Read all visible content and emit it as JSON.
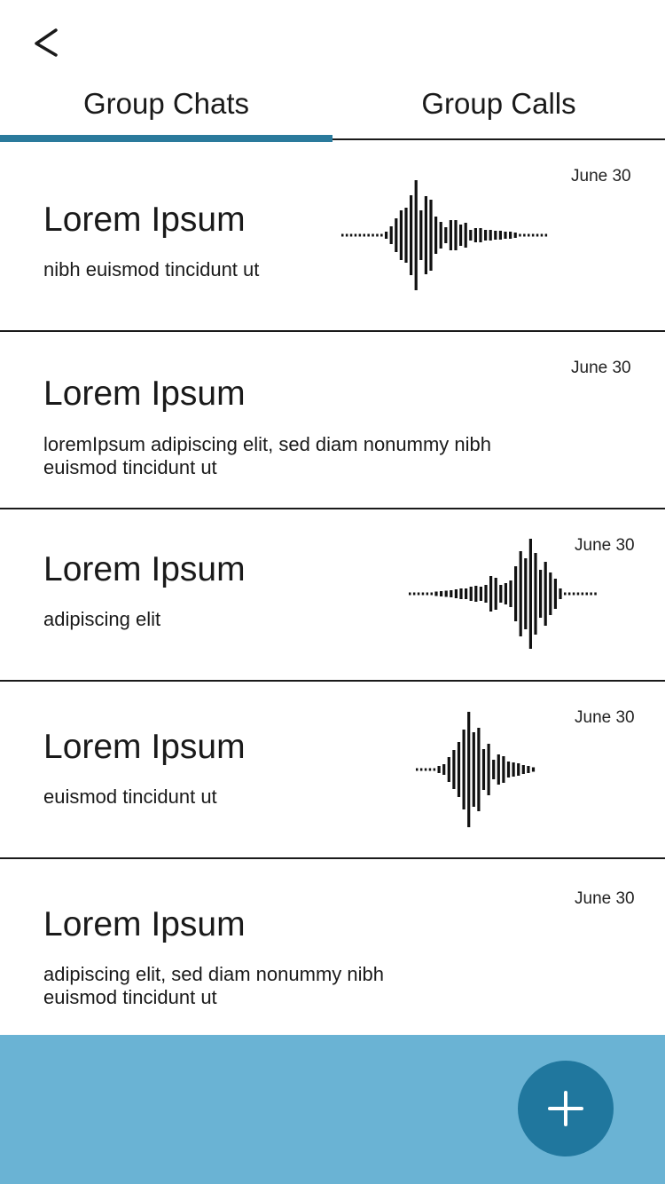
{
  "header": {
    "back_icon": "chevron-left-icon"
  },
  "tabs": [
    {
      "label": "Group Chats",
      "active": true
    },
    {
      "label": "Group Calls",
      "active": false
    }
  ],
  "colors": {
    "accent": "#2a7a9c",
    "bottom_bar": "#6ab3d4",
    "fab": "#20779e",
    "divider": "#1a1a1a"
  },
  "chats": [
    {
      "title": "Lorem Ipsum",
      "subtitle": "nibh euismod tincidunt ut",
      "date": "June 30",
      "has_audio": true
    },
    {
      "title": "Lorem Ipsum",
      "subtitle_lines": [
        "loremIpsum  adipiscing elit, sed diam nonummy nibh",
        "euismod tincidunt ut"
      ],
      "date": "June 30",
      "has_audio": false
    },
    {
      "title": "Lorem Ipsum",
      "subtitle": "adipiscing elit",
      "date": "June 30",
      "has_audio": true
    },
    {
      "title": "Lorem Ipsum",
      "subtitle": "euismod tincidunt ut",
      "date": "June 30",
      "has_audio": true
    },
    {
      "title": "Lorem Ipsum",
      "subtitle_lines": [
        "adipiscing elit, sed diam nonummy nibh",
        "euismod tincidunt ut"
      ],
      "date": "June 30",
      "has_audio": false
    }
  ],
  "fab": {
    "icon": "plus-icon"
  }
}
